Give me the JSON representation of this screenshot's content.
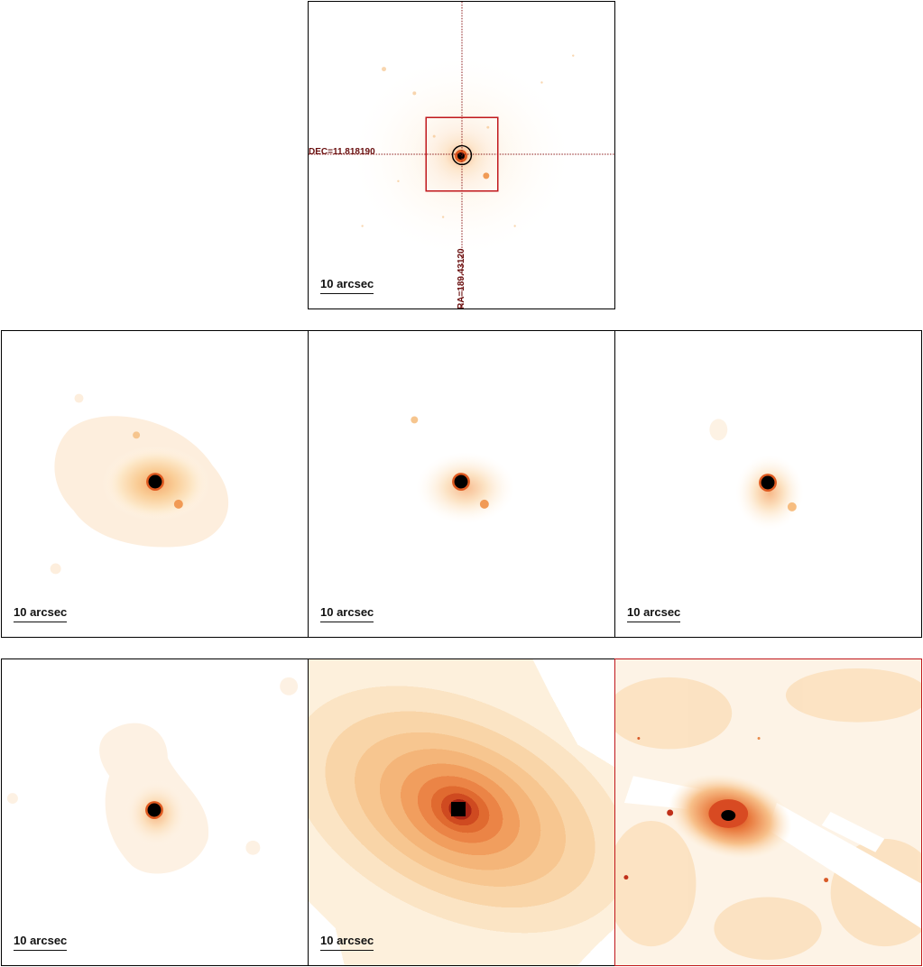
{
  "scale_label": "10 arcsec",
  "overlay": {
    "dec_label": "DEC=11.818190",
    "ra_label": "RA=189.43120"
  },
  "colors": {
    "frame": "#000000",
    "highlight_frame": "#c0161b",
    "crosshair": "#8b1a1a",
    "source_core": "#000000",
    "colormap": [
      "#fff8ee",
      "#fde8c8",
      "#f9c98e",
      "#f19a55",
      "#df5a20",
      "#b02010",
      "#000000"
    ]
  },
  "panels": [
    "top-reference-image",
    "middle-left-image",
    "middle-center-image",
    "middle-right-image",
    "bottom-left-image",
    "bottom-center-image",
    "bottom-right-image"
  ]
}
